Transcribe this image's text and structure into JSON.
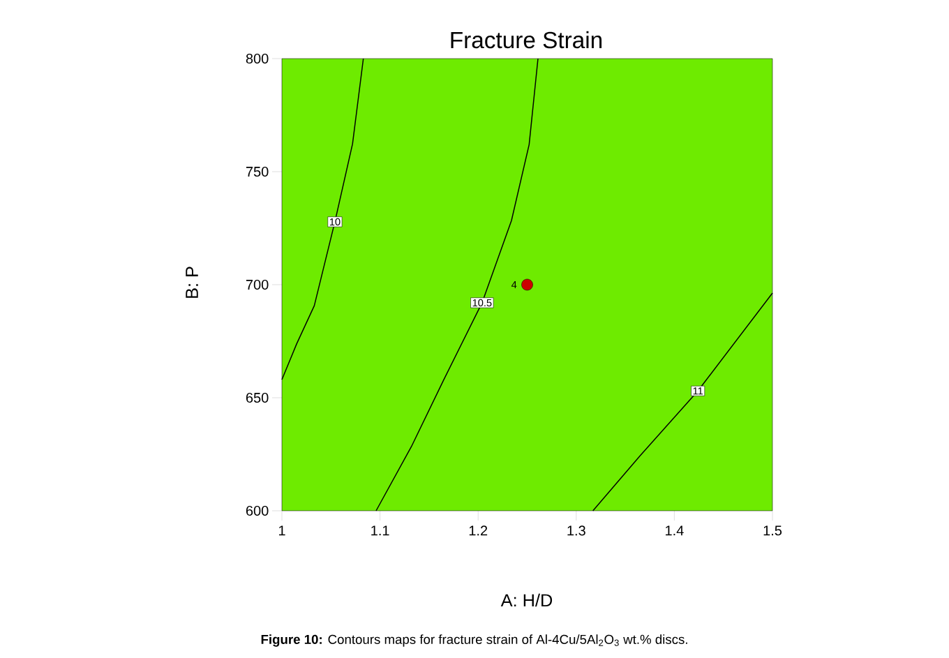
{
  "chart_data": {
    "type": "line",
    "title": "Fracture Strain",
    "xlabel": "A: H/D",
    "ylabel": "B: P",
    "xlim": [
      1,
      1.5
    ],
    "ylim": [
      600,
      800
    ],
    "xticks": [
      1,
      1.1,
      1.2,
      1.3,
      1.4,
      1.5
    ],
    "yticks": [
      600,
      650,
      700,
      750,
      800
    ],
    "grid": false,
    "marker": "none",
    "line_style": "solid",
    "series": [
      {
        "name": "10",
        "color": "#000000",
        "x": [
          1,
          1.015,
          1.033,
          1.054,
          1.072,
          1.083
        ],
        "values": [
          658,
          673.8,
          690.7,
          727.8,
          762.3,
          800
        ]
      },
      {
        "name": "10.5",
        "color": "#000000",
        "x": [
          1.096,
          1.132,
          1.165,
          1.204,
          1.234,
          1.252,
          1.261
        ],
        "values": [
          600,
          628.4,
          658,
          692,
          728.4,
          762,
          800
        ]
      },
      {
        "name": "11",
        "color": "#000000",
        "x": [
          1.317,
          1.365,
          1.424,
          1.5
        ],
        "values": [
          600,
          624.3,
          653,
          696.3
        ]
      },
      {
        "name": "4",
        "type": "scatter",
        "marker": "circle",
        "color": "#cc0000",
        "x": [
          1.25
        ],
        "values": [
          700
        ]
      }
    ],
    "annotations": [
      "**Figure 10:** Contours maps for fracture strain of Al-4Cu/5Al$_{2}$O$_{3}$ wt.% discs."
    ]
  }
}
